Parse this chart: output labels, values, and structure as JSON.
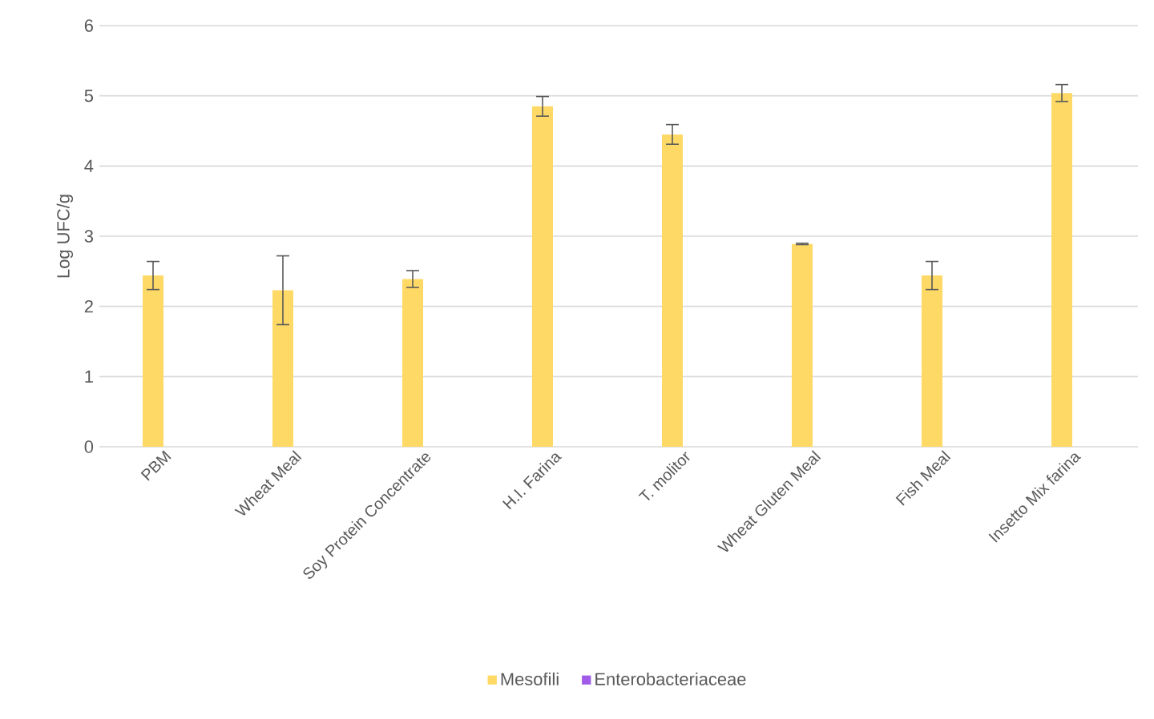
{
  "chart_data": {
    "type": "bar",
    "ylabel": "Log UFC/g",
    "categories": [
      "PBM",
      "Wheat Meal",
      "Soy Protein Concentrate",
      "H.I. Farina",
      "T. molitor",
      "Wheat Gluten Meal",
      "Fish Meal",
      "Insetto Mix farina"
    ],
    "series": [
      {
        "name": "Mesofili",
        "color": "#ffd966",
        "values": [
          2.44,
          2.23,
          2.39,
          4.85,
          4.45,
          2.89,
          2.44,
          5.04
        ],
        "errors": [
          0.2,
          0.49,
          0.12,
          0.14,
          0.14,
          0.01,
          0.2,
          0.12
        ]
      },
      {
        "name": "Enterobacteriaceae",
        "color": "#a05ce8",
        "values": [
          0,
          0,
          0,
          0,
          0,
          0,
          0,
          0
        ]
      }
    ],
    "ylim": [
      0,
      6
    ],
    "yticks": [
      0,
      1,
      2,
      3,
      4,
      5,
      6
    ],
    "grid": "y",
    "legend": "bottom"
  }
}
